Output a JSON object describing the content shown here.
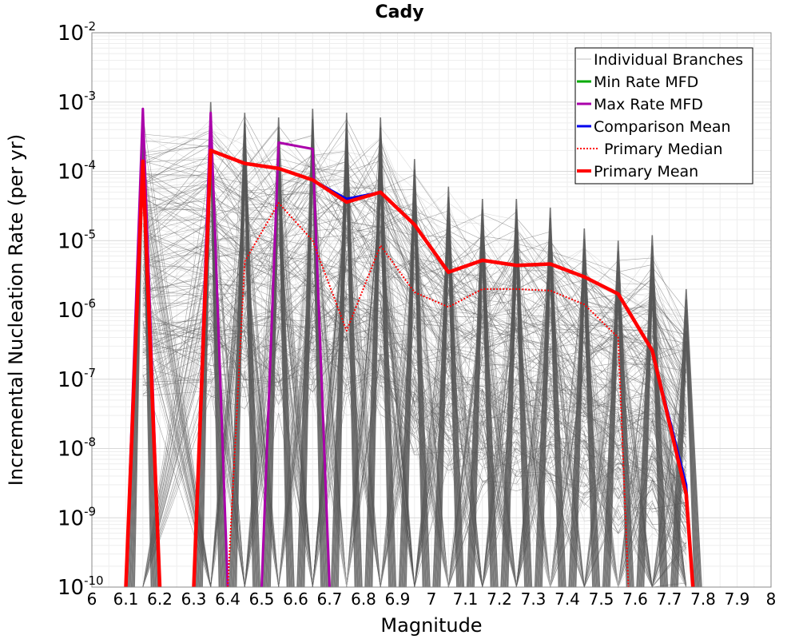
{
  "chart_data": {
    "type": "line",
    "title": "Cady",
    "xlabel": "Magnitude",
    "ylabel": "Incremental Nucleation Rate (per yr)",
    "xlim": [
      6,
      8
    ],
    "ylim": [
      1e-10,
      0.01
    ],
    "y_scale": "log",
    "grid": true,
    "legend_position": "top-right",
    "x_ticks": [
      "6",
      "6.1",
      "6.2",
      "6.3",
      "6.4",
      "6.5",
      "6.6",
      "6.7",
      "6.8",
      "6.9",
      "7",
      "7.1",
      "7.2",
      "7.3",
      "7.4",
      "7.5",
      "7.6",
      "7.7",
      "7.8",
      "7.9",
      "8"
    ],
    "y_ticks": [
      {
        "base": "10",
        "exp": "-10",
        "value": 1e-10
      },
      {
        "base": "10",
        "exp": "-9",
        "value": 1e-09
      },
      {
        "base": "10",
        "exp": "-8",
        "value": 1e-08
      },
      {
        "base": "10",
        "exp": "-7",
        "value": 1e-07
      },
      {
        "base": "10",
        "exp": "-6",
        "value": 1e-06
      },
      {
        "base": "10",
        "exp": "-5",
        "value": 1e-05
      },
      {
        "base": "10",
        "exp": "-4",
        "value": 0.0001
      },
      {
        "base": "10",
        "exp": "-3",
        "value": 0.001
      },
      {
        "base": "10",
        "exp": "-2",
        "value": 0.01
      }
    ],
    "series": [
      {
        "name": "Individual Branches",
        "color": "#505050",
        "style": "thin",
        "note_values": "envelope of many branch curves; per-bin peak rates",
        "x": [
          6.15,
          6.35,
          6.45,
          6.55,
          6.65,
          6.75,
          6.85,
          6.95,
          7.05,
          7.15,
          7.25,
          7.35,
          7.45,
          7.55,
          7.65,
          7.75
        ],
        "values": [
          0.0008,
          0.001,
          0.0007,
          0.0006,
          0.0008,
          0.0007,
          0.0006,
          0.00015,
          6e-05,
          4e-05,
          4e-05,
          3e-05,
          1.5e-05,
          1e-05,
          1.2e-05,
          2e-06
        ]
      },
      {
        "name": "Min Rate MFD",
        "color": "#00aa00",
        "x": [],
        "values": []
      },
      {
        "name": "Max Rate MFD",
        "color": "#aa00aa",
        "x": [
          6.1,
          6.15,
          6.2,
          null,
          6.3,
          6.35,
          6.4,
          null,
          6.5,
          6.55,
          6.65,
          6.7
        ],
        "values": [
          1e-10,
          0.0008,
          1e-10,
          null,
          1e-10,
          0.0007,
          1e-10,
          null,
          1e-10,
          0.00026,
          0.00021,
          1e-10
        ]
      },
      {
        "name": "Comparison Mean",
        "color": "#0000ee",
        "x": [
          6.1,
          6.15,
          6.2,
          null,
          6.3,
          6.35,
          6.45,
          6.55,
          6.65,
          6.75,
          6.85,
          6.95,
          7.05,
          7.15,
          7.25,
          7.35,
          7.45,
          7.55,
          7.65,
          7.75,
          7.77
        ],
        "values": [
          1e-10,
          0.00014,
          1e-10,
          null,
          1e-10,
          0.0002,
          0.00013,
          0.00011,
          7.5e-05,
          4e-05,
          5e-05,
          1.7e-05,
          3.5e-06,
          5.2e-06,
          4.4e-06,
          4.6e-06,
          3e-06,
          1.7e-06,
          2.6e-07,
          3e-09,
          1e-10
        ]
      },
      {
        "name": "Primary Median",
        "color": "#ff0000",
        "style": "dotted",
        "x": [
          6.4,
          6.45,
          6.55,
          6.65,
          6.75,
          6.85,
          6.95,
          7.05,
          7.15,
          7.25,
          7.35,
          7.45,
          7.55,
          7.58
        ],
        "values": [
          1e-10,
          5e-06,
          3.5e-05,
          1e-05,
          5e-07,
          8.5e-06,
          1.8e-06,
          1.1e-06,
          2e-06,
          2e-06,
          1.9e-06,
          1.2e-06,
          4e-07,
          1e-10
        ]
      },
      {
        "name": "Primary Mean",
        "color": "#ff0000",
        "x": [
          6.1,
          6.15,
          6.2,
          null,
          6.3,
          6.35,
          6.45,
          6.55,
          6.65,
          6.75,
          6.85,
          6.95,
          7.05,
          7.15,
          7.25,
          7.35,
          7.45,
          7.55,
          7.65,
          7.75,
          7.77
        ],
        "values": [
          1e-10,
          0.00014,
          1e-10,
          null,
          1e-10,
          0.0002,
          0.00013,
          0.00011,
          7.5e-05,
          3.6e-05,
          5e-05,
          1.7e-05,
          3.5e-06,
          5.2e-06,
          4.4e-06,
          4.6e-06,
          3e-06,
          1.7e-06,
          2.6e-07,
          2.2e-09,
          1e-10
        ]
      }
    ]
  }
}
